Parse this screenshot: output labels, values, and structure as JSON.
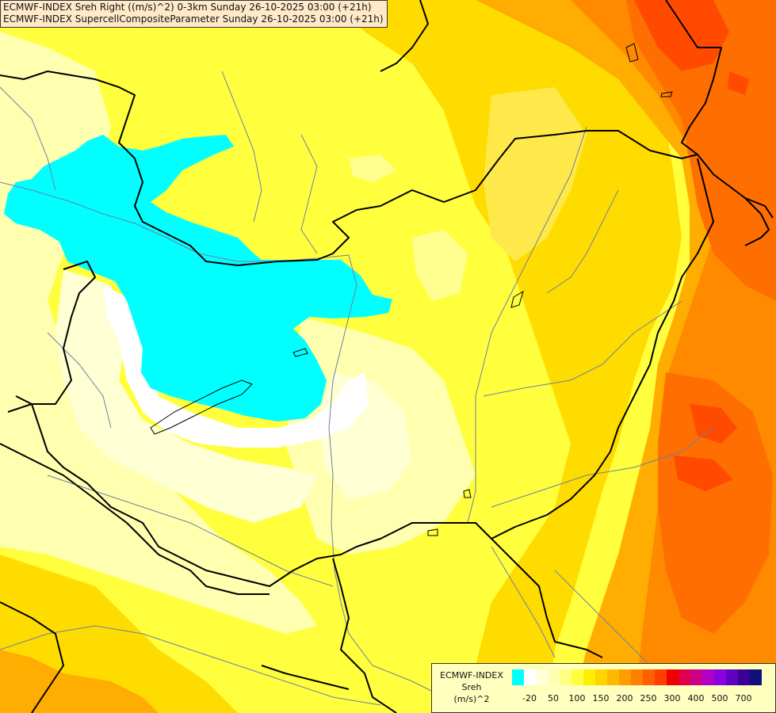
{
  "title": {
    "line1": "ECMWF-INDEX Sreh Right ((m/s)^2) 0-3km Sunday 26-10-2025 03:00 (+21h)",
    "line2": "ECMWF-INDEX SupercellCompositeParameter Sunday 26-10-2025 03:00 (+21h)"
  },
  "legend": {
    "model": "ECMWF-INDEX",
    "param": "Sreh",
    "unit": "(m/s)^2",
    "ticks": [
      "-20",
      "50",
      "100",
      "150",
      "200",
      "250",
      "300",
      "400",
      "500",
      "700"
    ],
    "colors": [
      "#00ffff",
      "#ffffff",
      "#ffffd9",
      "#ffffb3",
      "#ffff80",
      "#ffff40",
      "#ffee00",
      "#ffd400",
      "#ffb800",
      "#ff9c00",
      "#ff7f00",
      "#ff5f00",
      "#ff3f00",
      "#f00000",
      "#e0004a",
      "#cc0088",
      "#b000c8",
      "#8a00e0",
      "#6000c0",
      "#3a0098",
      "#10107a"
    ]
  },
  "map": {
    "fields": [
      "cyan-negative-shear-area",
      "white-low-shear-area",
      "pale-yellow-area",
      "yellow-area",
      "gold-area",
      "orange-eastern-area",
      "dark-orange-area",
      "red-northeast-area",
      "orange-southwest-area"
    ],
    "borders": [
      "country-borders",
      "rivers"
    ]
  }
}
